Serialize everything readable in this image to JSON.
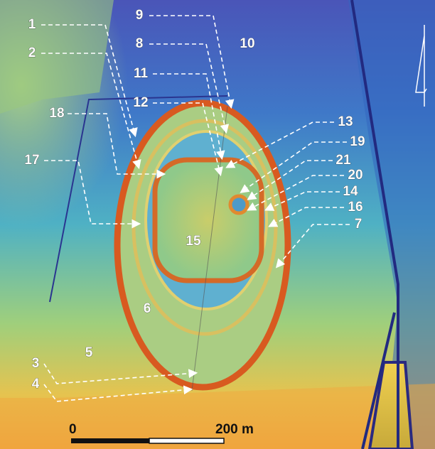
{
  "labels": [
    "1",
    "2",
    "3",
    "4",
    "5",
    "6",
    "7",
    "8",
    "9",
    "10",
    "11",
    "12",
    "13",
    "14",
    "15",
    "16",
    "17",
    "18",
    "19",
    "20",
    "21"
  ],
  "scale_bar": {
    "start": "0",
    "end": "200 m"
  }
}
